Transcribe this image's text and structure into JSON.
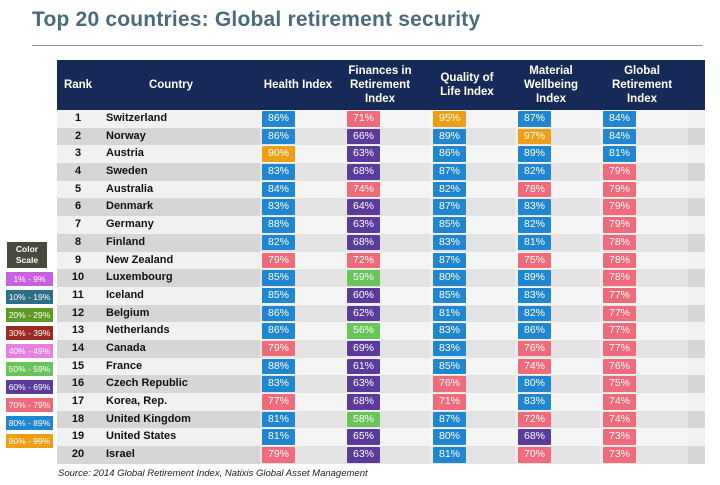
{
  "title": "Top 20 countries: Global retirement security",
  "source": "Source: 2014 Global Retirement Index, Natixis Global Asset Management",
  "headers": {
    "rank": "Rank",
    "country": "Country",
    "health": "Health Index",
    "finances": "Finances in Retirement Index",
    "quality": "Quality of Life Index",
    "material": "Material Wellbeing Index",
    "global": "Global Retirement Index"
  },
  "scale": {
    "title": "Color Scale",
    "items": [
      {
        "label": "1% - 9%",
        "color": "#c861e0"
      },
      {
        "label": "10% - 19%",
        "color": "#2c6e86"
      },
      {
        "label": "20% - 29%",
        "color": "#5e9a26"
      },
      {
        "label": "30% - 39%",
        "color": "#9c2a24"
      },
      {
        "label": "40% - 49%",
        "color": "#e97fe0"
      },
      {
        "label": "50% - 59%",
        "color": "#69c45a"
      },
      {
        "label": "60% - 69%",
        "color": "#5a3a9a"
      },
      {
        "label": "70% - 79%",
        "color": "#ef6a7a"
      },
      {
        "label": "80% - 89%",
        "color": "#1f86cf"
      },
      {
        "label": "90% - 99%",
        "color": "#ef9f16"
      }
    ]
  },
  "colors": {
    "50s": "#69c45a",
    "60s": "#5a3a9a",
    "70s": "#ef6a7a",
    "80s": "#1f86cf",
    "90s": "#ef9f16",
    "header_bg": "#162a58"
  },
  "rows": [
    {
      "rank": "1",
      "country": "Switzerland",
      "health": "86%",
      "finances": "71%",
      "quality": "95%",
      "material": "87%",
      "global": "84%"
    },
    {
      "rank": "2",
      "country": "Norway",
      "health": "86%",
      "finances": "66%",
      "quality": "89%",
      "material": "97%",
      "global": "84%"
    },
    {
      "rank": "3",
      "country": "Austria",
      "health": "90%",
      "finances": "63%",
      "quality": "86%",
      "material": "89%",
      "global": "81%"
    },
    {
      "rank": "4",
      "country": "Sweden",
      "health": "83%",
      "finances": "68%",
      "quality": "87%",
      "material": "82%",
      "global": "79%"
    },
    {
      "rank": "5",
      "country": "Australia",
      "health": "84%",
      "finances": "74%",
      "quality": "82%",
      "material": "78%",
      "global": "79%"
    },
    {
      "rank": "6",
      "country": "Denmark",
      "health": "83%",
      "finances": "64%",
      "quality": "87%",
      "material": "83%",
      "global": "79%"
    },
    {
      "rank": "7",
      "country": "Germany",
      "health": "88%",
      "finances": "63%",
      "quality": "85%",
      "material": "82%",
      "global": "79%"
    },
    {
      "rank": "8",
      "country": "Finland",
      "health": "82%",
      "finances": "68%",
      "quality": "83%",
      "material": "81%",
      "global": "78%"
    },
    {
      "rank": "9",
      "country": "New Zealand",
      "health": "79%",
      "finances": "72%",
      "quality": "87%",
      "material": "75%",
      "global": "78%"
    },
    {
      "rank": "10",
      "country": "Luxembourg",
      "health": "85%",
      "finances": "59%",
      "quality": "80%",
      "material": "89%",
      "global": "78%"
    },
    {
      "rank": "11",
      "country": "Iceland",
      "health": "85%",
      "finances": "60%",
      "quality": "85%",
      "material": "83%",
      "global": "77%"
    },
    {
      "rank": "12",
      "country": "Belgium",
      "health": "86%",
      "finances": "62%",
      "quality": "81%",
      "material": "82%",
      "global": "77%"
    },
    {
      "rank": "13",
      "country": "Netherlands",
      "health": "86%",
      "finances": "56%",
      "quality": "83%",
      "material": "86%",
      "global": "77%"
    },
    {
      "rank": "14",
      "country": "Canada",
      "health": "79%",
      "finances": "69%",
      "quality": "83%",
      "material": "76%",
      "global": "77%"
    },
    {
      "rank": "15",
      "country": "France",
      "health": "88%",
      "finances": "61%",
      "quality": "85%",
      "material": "74%",
      "global": "76%"
    },
    {
      "rank": "16",
      "country": "Czech Republic",
      "health": "83%",
      "finances": "63%",
      "quality": "76%",
      "material": "80%",
      "global": "75%"
    },
    {
      "rank": "17",
      "country": "Korea, Rep.",
      "health": "77%",
      "finances": "68%",
      "quality": "71%",
      "material": "83%",
      "global": "74%"
    },
    {
      "rank": "18",
      "country": "United Kingdom",
      "health": "81%",
      "finances": "58%",
      "quality": "87%",
      "material": "72%",
      "global": "74%"
    },
    {
      "rank": "19",
      "country": "United States",
      "health": "81%",
      "finances": "65%",
      "quality": "80%",
      "material": "68%",
      "global": "73%"
    },
    {
      "rank": "20",
      "country": "Israel",
      "health": "79%",
      "finances": "63%",
      "quality": "81%",
      "material": "70%",
      "global": "73%"
    }
  ]
}
